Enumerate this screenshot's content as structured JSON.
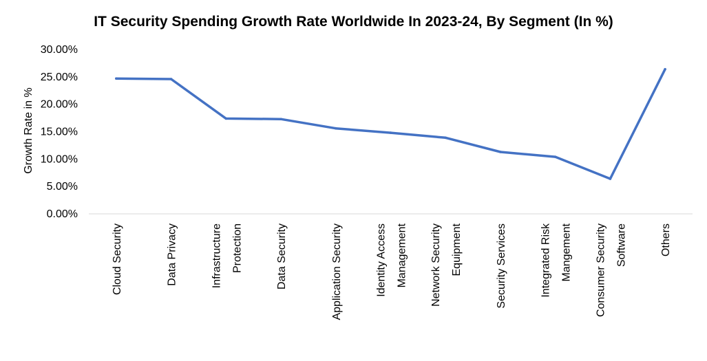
{
  "chart_data": {
    "type": "line",
    "title": "IT Security Spending Growth Rate Worldwide In 2023-24, By Segment (In %)",
    "xlabel": "",
    "ylabel": "Growth Rate in %",
    "ylim": [
      0,
      30
    ],
    "yticks": [
      "0.00%",
      "5.00%",
      "10.00%",
      "15.00%",
      "20.00%",
      "25.00%",
      "30.00%"
    ],
    "grid": false,
    "legend": "none",
    "categories": [
      [
        "Cloud Security"
      ],
      [
        "Data Privacy"
      ],
      [
        "Infrastructure",
        "Protection"
      ],
      [
        "Data Security"
      ],
      [
        "Application Security"
      ],
      [
        "Identity Access",
        "Management"
      ],
      [
        "Network Security",
        "Equipment"
      ],
      [
        "Security Services"
      ],
      [
        "Integrated Risk",
        "Mangement"
      ],
      [
        "Consumer Security",
        "Software"
      ],
      [
        "Others"
      ]
    ],
    "series": [
      {
        "name": "Growth Rate",
        "color": "#4472C4",
        "values": [
          24.7,
          24.6,
          17.4,
          17.3,
          15.6,
          14.8,
          13.9,
          11.3,
          10.4,
          6.4,
          26.4
        ]
      }
    ]
  }
}
